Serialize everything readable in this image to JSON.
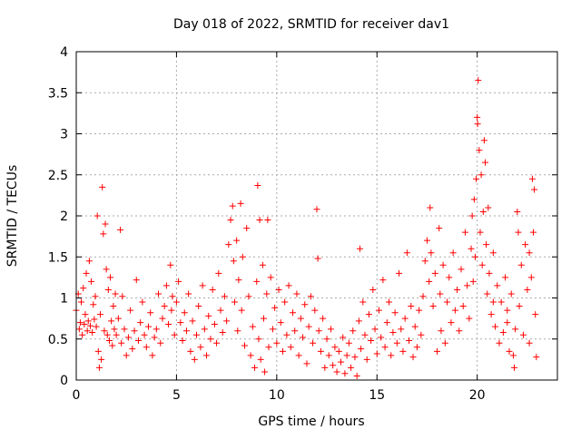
{
  "chart_data": {
    "type": "scatter",
    "title": "Day 018 of 2022, SRMTID for receiver dav1",
    "xlabel": "GPS time / hours",
    "ylabel": "SRMTID / TECUs",
    "xlim": [
      0,
      24
    ],
    "ylim": [
      0,
      4
    ],
    "xticks": [
      0,
      5,
      10,
      15,
      20
    ],
    "yticks": [
      0,
      0.5,
      1,
      1.5,
      2,
      2.5,
      3,
      3.5,
      4
    ],
    "xtick_labels": [
      "0",
      "5",
      "10",
      "15",
      "20"
    ],
    "ytick_labels": [
      "0",
      "0.5",
      "1",
      "1.5",
      "2",
      "2.5",
      "3",
      "3.5",
      "4"
    ],
    "grid": true,
    "marker": "+",
    "color": "#ff0000",
    "series": [
      {
        "name": "SRMTID",
        "points": [
          [
            0.0,
            0.85
          ],
          [
            0.1,
            1.05
          ],
          [
            0.15,
            0.62
          ],
          [
            0.2,
            0.7
          ],
          [
            0.25,
            0.95
          ],
          [
            0.3,
            0.55
          ],
          [
            0.35,
            1.12
          ],
          [
            0.4,
            0.68
          ],
          [
            0.45,
            0.8
          ],
          [
            0.5,
            1.3
          ],
          [
            0.55,
            0.6
          ],
          [
            0.6,
            0.72
          ],
          [
            0.65,
            1.45
          ],
          [
            0.7,
            0.66
          ],
          [
            0.75,
            1.2
          ],
          [
            0.8,
            0.58
          ],
          [
            0.85,
            0.92
          ],
          [
            0.9,
            0.74
          ],
          [
            0.95,
            1.02
          ],
          [
            1.0,
            0.65
          ],
          [
            1.05,
            2.0
          ],
          [
            1.1,
            0.35
          ],
          [
            1.15,
            0.15
          ],
          [
            1.2,
            0.8
          ],
          [
            1.25,
            0.25
          ],
          [
            1.3,
            2.35
          ],
          [
            1.35,
            1.78
          ],
          [
            1.4,
            0.6
          ],
          [
            1.45,
            1.9
          ],
          [
            1.5,
            1.35
          ],
          [
            1.55,
            0.55
          ],
          [
            1.6,
            1.1
          ],
          [
            1.65,
            0.48
          ],
          [
            1.7,
            1.25
          ],
          [
            1.75,
            0.72
          ],
          [
            1.8,
            0.42
          ],
          [
            1.85,
            0.9
          ],
          [
            1.9,
            0.62
          ],
          [
            1.95,
            1.05
          ],
          [
            2.0,
            0.55
          ],
          [
            2.1,
            0.75
          ],
          [
            2.2,
            1.83
          ],
          [
            2.25,
            0.45
          ],
          [
            2.3,
            1.02
          ],
          [
            2.4,
            0.62
          ],
          [
            2.5,
            0.3
          ],
          [
            2.6,
            0.52
          ],
          [
            2.7,
            0.85
          ],
          [
            2.8,
            0.38
          ],
          [
            2.9,
            0.6
          ],
          [
            3.0,
            1.22
          ],
          [
            3.1,
            0.48
          ],
          [
            3.2,
            0.7
          ],
          [
            3.3,
            0.95
          ],
          [
            3.4,
            0.55
          ],
          [
            3.5,
            0.4
          ],
          [
            3.6,
            0.65
          ],
          [
            3.7,
            0.82
          ],
          [
            3.8,
            0.3
          ],
          [
            3.9,
            0.52
          ],
          [
            4.0,
            0.62
          ],
          [
            4.1,
            1.05
          ],
          [
            4.2,
            0.45
          ],
          [
            4.3,
            0.75
          ],
          [
            4.4,
            0.9
          ],
          [
            4.5,
            1.15
          ],
          [
            4.6,
            0.68
          ],
          [
            4.7,
            1.4
          ],
          [
            4.75,
            0.85
          ],
          [
            4.8,
            1.02
          ],
          [
            4.9,
            0.55
          ],
          [
            5.0,
            0.95
          ],
          [
            5.1,
            1.2
          ],
          [
            5.2,
            0.7
          ],
          [
            5.3,
            0.48
          ],
          [
            5.4,
            0.82
          ],
          [
            5.5,
            0.6
          ],
          [
            5.6,
            1.05
          ],
          [
            5.7,
            0.35
          ],
          [
            5.8,
            0.72
          ],
          [
            5.9,
            0.25
          ],
          [
            6.0,
            0.55
          ],
          [
            6.1,
            0.9
          ],
          [
            6.2,
            0.4
          ],
          [
            6.3,
            1.15
          ],
          [
            6.4,
            0.62
          ],
          [
            6.5,
            0.3
          ],
          [
            6.6,
            0.78
          ],
          [
            6.7,
            0.5
          ],
          [
            6.8,
            1.1
          ],
          [
            6.9,
            0.68
          ],
          [
            7.0,
            0.45
          ],
          [
            7.1,
            1.3
          ],
          [
            7.2,
            0.85
          ],
          [
            7.3,
            0.58
          ],
          [
            7.4,
            1.02
          ],
          [
            7.5,
            0.72
          ],
          [
            7.6,
            1.65
          ],
          [
            7.7,
            1.95
          ],
          [
            7.8,
            2.12
          ],
          [
            7.85,
            1.45
          ],
          [
            7.9,
            0.95
          ],
          [
            8.0,
            1.7
          ],
          [
            8.05,
            0.6
          ],
          [
            8.1,
            1.22
          ],
          [
            8.2,
            2.15
          ],
          [
            8.25,
            0.85
          ],
          [
            8.3,
            1.5
          ],
          [
            8.4,
            0.42
          ],
          [
            8.5,
            1.85
          ],
          [
            8.6,
            1.02
          ],
          [
            8.7,
            0.3
          ],
          [
            8.8,
            0.65
          ],
          [
            8.9,
            0.15
          ],
          [
            9.0,
            1.2
          ],
          [
            9.05,
            2.37
          ],
          [
            9.1,
            0.5
          ],
          [
            9.15,
            1.95
          ],
          [
            9.2,
            0.25
          ],
          [
            9.3,
            1.4
          ],
          [
            9.35,
            0.75
          ],
          [
            9.4,
            0.1
          ],
          [
            9.5,
            1.05
          ],
          [
            9.55,
            1.95
          ],
          [
            9.6,
            0.4
          ],
          [
            9.7,
            1.25
          ],
          [
            9.8,
            0.62
          ],
          [
            9.9,
            0.88
          ],
          [
            10.0,
            0.45
          ],
          [
            10.1,
            1.1
          ],
          [
            10.2,
            0.7
          ],
          [
            10.3,
            0.35
          ],
          [
            10.4,
            0.95
          ],
          [
            10.5,
            0.55
          ],
          [
            10.6,
            1.15
          ],
          [
            10.7,
            0.4
          ],
          [
            10.8,
            0.82
          ],
          [
            10.9,
            0.6
          ],
          [
            11.0,
            1.05
          ],
          [
            11.1,
            0.3
          ],
          [
            11.2,
            0.75
          ],
          [
            11.3,
            0.52
          ],
          [
            11.4,
            0.92
          ],
          [
            11.5,
            0.2
          ],
          [
            11.6,
            0.65
          ],
          [
            11.7,
            1.02
          ],
          [
            11.8,
            0.45
          ],
          [
            11.9,
            0.85
          ],
          [
            12.0,
            2.08
          ],
          [
            12.05,
            1.48
          ],
          [
            12.1,
            0.6
          ],
          [
            12.2,
            0.35
          ],
          [
            12.3,
            0.75
          ],
          [
            12.4,
            0.15
          ],
          [
            12.5,
            0.5
          ],
          [
            12.6,
            0.3
          ],
          [
            12.7,
            0.62
          ],
          [
            12.8,
            0.18
          ],
          [
            12.9,
            0.4
          ],
          [
            13.0,
            0.1
          ],
          [
            13.1,
            0.35
          ],
          [
            13.2,
            0.22
          ],
          [
            13.3,
            0.52
          ],
          [
            13.4,
            0.08
          ],
          [
            13.5,
            0.3
          ],
          [
            13.6,
            0.45
          ],
          [
            13.7,
            0.15
          ],
          [
            13.8,
            0.6
          ],
          [
            13.9,
            0.28
          ],
          [
            14.0,
            0.05
          ],
          [
            14.1,
            0.72
          ],
          [
            14.15,
            1.6
          ],
          [
            14.2,
            0.38
          ],
          [
            14.3,
            0.95
          ],
          [
            14.4,
            0.55
          ],
          [
            14.5,
            0.25
          ],
          [
            14.6,
            0.8
          ],
          [
            14.7,
            0.48
          ],
          [
            14.8,
            1.1
          ],
          [
            14.9,
            0.62
          ],
          [
            15.0,
            0.32
          ],
          [
            15.1,
            0.85
          ],
          [
            15.2,
            0.52
          ],
          [
            15.3,
            1.22
          ],
          [
            15.4,
            0.4
          ],
          [
            15.5,
            0.7
          ],
          [
            15.6,
            0.95
          ],
          [
            15.7,
            0.3
          ],
          [
            15.8,
            0.58
          ],
          [
            15.9,
            0.82
          ],
          [
            16.0,
            0.45
          ],
          [
            16.1,
            1.3
          ],
          [
            16.2,
            0.62
          ],
          [
            16.3,
            0.35
          ],
          [
            16.4,
            0.75
          ],
          [
            16.5,
            1.55
          ],
          [
            16.6,
            0.48
          ],
          [
            16.7,
            0.9
          ],
          [
            16.8,
            0.28
          ],
          [
            16.9,
            0.65
          ],
          [
            17.0,
            0.4
          ],
          [
            17.1,
            0.85
          ],
          [
            17.2,
            0.55
          ],
          [
            17.3,
            1.02
          ],
          [
            17.4,
            1.45
          ],
          [
            17.5,
            1.7
          ],
          [
            17.6,
            1.2
          ],
          [
            17.65,
            2.1
          ],
          [
            17.7,
            1.55
          ],
          [
            17.8,
            0.9
          ],
          [
            17.9,
            1.3
          ],
          [
            18.0,
            0.35
          ],
          [
            18.1,
            1.85
          ],
          [
            18.15,
            1.05
          ],
          [
            18.2,
            0.6
          ],
          [
            18.3,
            1.4
          ],
          [
            18.4,
            0.45
          ],
          [
            18.5,
            0.95
          ],
          [
            18.6,
            1.25
          ],
          [
            18.7,
            0.7
          ],
          [
            18.8,
            1.55
          ],
          [
            18.9,
            0.85
          ],
          [
            19.0,
            1.1
          ],
          [
            19.1,
            0.6
          ],
          [
            19.2,
            1.35
          ],
          [
            19.3,
            0.9
          ],
          [
            19.4,
            1.8
          ],
          [
            19.5,
            1.15
          ],
          [
            19.6,
            0.75
          ],
          [
            19.7,
            1.6
          ],
          [
            19.75,
            2.0
          ],
          [
            19.8,
            1.2
          ],
          [
            19.85,
            2.2
          ],
          [
            19.9,
            1.5
          ],
          [
            19.95,
            2.45
          ],
          [
            20.0,
            3.2
          ],
          [
            20.02,
            3.12
          ],
          [
            20.05,
            3.65
          ],
          [
            20.1,
            2.8
          ],
          [
            20.15,
            1.8
          ],
          [
            20.2,
            2.5
          ],
          [
            20.25,
            1.4
          ],
          [
            20.3,
            2.05
          ],
          [
            20.35,
            2.92
          ],
          [
            20.4,
            2.65
          ],
          [
            20.45,
            1.65
          ],
          [
            20.5,
            1.05
          ],
          [
            20.55,
            2.1
          ],
          [
            20.6,
            1.3
          ],
          [
            20.7,
            0.8
          ],
          [
            20.8,
            1.55
          ],
          [
            20.9,
            0.65
          ],
          [
            21.0,
            1.15
          ],
          [
            21.1,
            0.45
          ],
          [
            21.2,
            0.95
          ],
          [
            21.3,
            0.58
          ],
          [
            21.4,
            1.25
          ],
          [
            21.5,
            0.7
          ],
          [
            21.6,
            0.35
          ],
          [
            21.7,
            1.05
          ],
          [
            21.8,
            0.3
          ],
          [
            21.85,
            0.15
          ],
          [
            21.9,
            0.62
          ],
          [
            22.0,
            2.05
          ],
          [
            22.05,
            1.8
          ],
          [
            22.1,
            0.9
          ],
          [
            22.2,
            1.4
          ],
          [
            22.3,
            0.55
          ],
          [
            22.4,
            1.65
          ],
          [
            22.5,
            1.1
          ],
          [
            22.6,
            0.45
          ],
          [
            22.7,
            1.25
          ],
          [
            22.75,
            2.45
          ],
          [
            22.8,
            1.8
          ],
          [
            22.85,
            2.32
          ],
          [
            22.9,
            0.8
          ],
          [
            22.95,
            0.28
          ],
          [
            22.6,
            1.55
          ],
          [
            21.5,
            0.85
          ],
          [
            20.8,
            0.95
          ]
        ]
      }
    ]
  }
}
